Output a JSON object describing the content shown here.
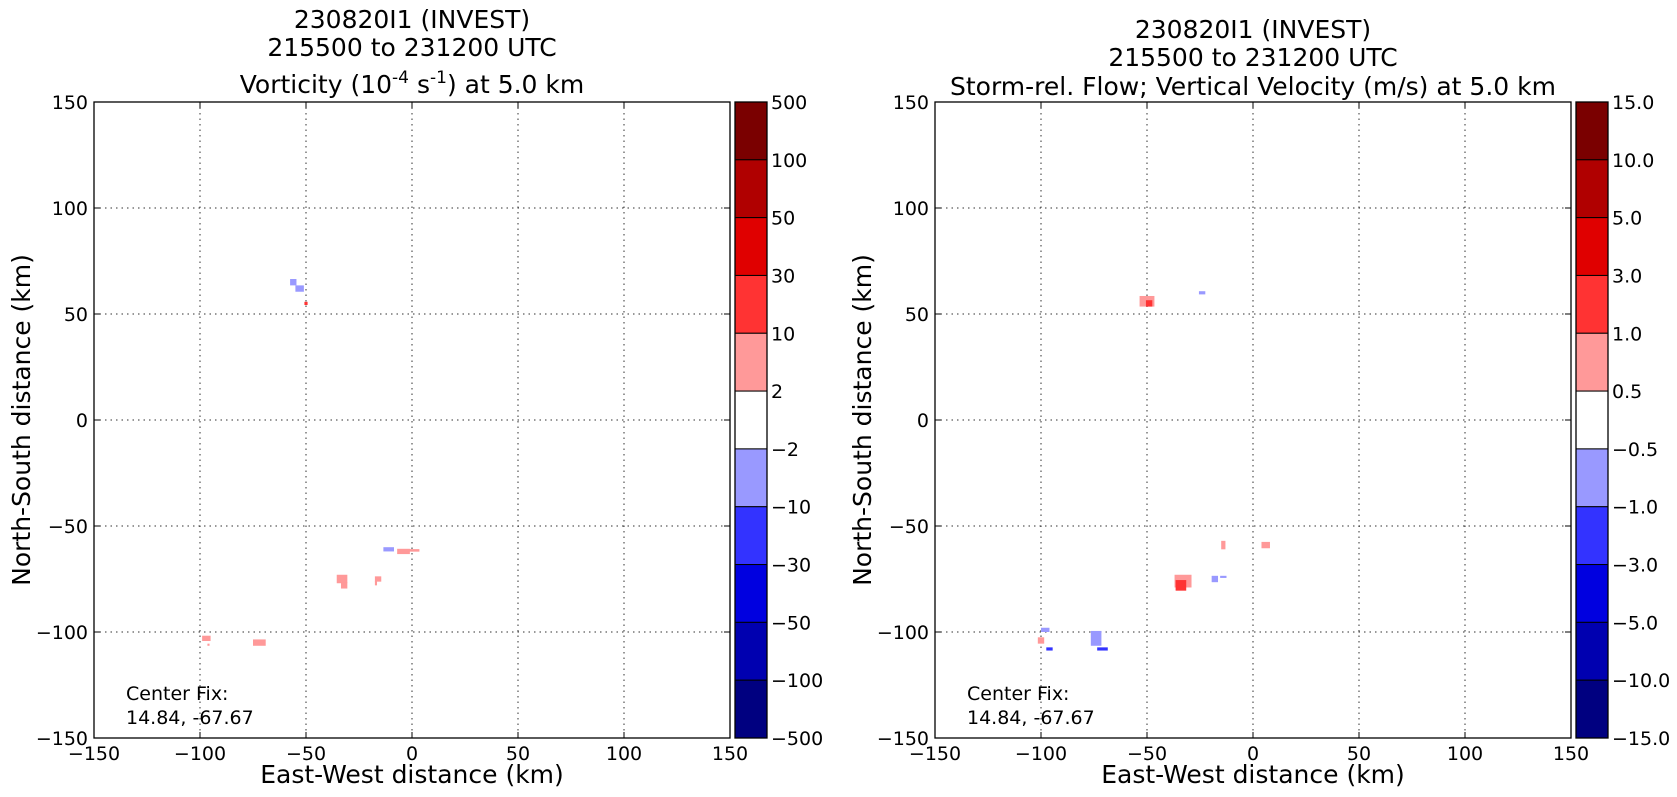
{
  "chart_data": [
    {
      "type": "heatmap",
      "title_lines": [
        "230820I1 (INVEST)",
        "215500 to 231200 UTC"
      ],
      "title_variable": {
        "pre": "Vorticity (10",
        "sup1": "-4",
        "mid": " s",
        "sup2": "-1",
        "post": ") at 5.0 km"
      },
      "xlabel": "East-West distance (km)",
      "ylabel": "North-South distance (km)",
      "xlim": [
        -150,
        150
      ],
      "ylim": [
        -150,
        150
      ],
      "xticks": [
        -150,
        -100,
        -50,
        0,
        50,
        100,
        150
      ],
      "yticks": [
        -150,
        -100,
        -50,
        0,
        50,
        100,
        150
      ],
      "xtick_labels": [
        "−150",
        "−100",
        "−50",
        "0",
        "50",
        "100",
        "150"
      ],
      "ytick_labels": [
        "−150",
        "−100",
        "−50",
        "0",
        "50",
        "100",
        "150"
      ],
      "grid": true,
      "annotation": [
        "Center Fix:",
        "14.84, -67.67"
      ],
      "colorbar": {
        "labels": [
          "500",
          "100",
          "50",
          "30",
          "10",
          "2",
          "−2",
          "−10",
          "−30",
          "−50",
          "−100",
          "−500"
        ],
        "colors": [
          "#7a0000",
          "#b00000",
          "#e00000",
          "#ff3333",
          "#ff9999",
          "#ffffff",
          "#9999ff",
          "#3333ff",
          "#0000e0",
          "#0000b0",
          "#000080"
        ]
      },
      "features": [
        {
          "x": -56,
          "y": 65,
          "w": 3,
          "h": 3,
          "color": "#9999ff"
        },
        {
          "x": -53,
          "y": 62,
          "w": 4,
          "h": 3,
          "color": "#9999ff"
        },
        {
          "x": -50,
          "y": 55,
          "w": 1.5,
          "h": 1.5,
          "color": "#ff3333"
        },
        {
          "x": -11,
          "y": -61,
          "w": 5,
          "h": 2,
          "color": "#9999ff"
        },
        {
          "x": -4,
          "y": -62,
          "w": 6,
          "h": 2.5,
          "color": "#ff9999"
        },
        {
          "x": 1,
          "y": -61.5,
          "w": 5,
          "h": 1.2,
          "color": "#ff9999"
        },
        {
          "x": -33,
          "y": -75,
          "w": 5,
          "h": 4,
          "color": "#ff9999"
        },
        {
          "x": -32,
          "y": -78,
          "w": 3,
          "h": 3,
          "color": "#ff9999"
        },
        {
          "x": -16,
          "y": -75,
          "w": 3,
          "h": 2.5,
          "color": "#ff9999"
        },
        {
          "x": -17,
          "y": -77,
          "w": 1,
          "h": 2,
          "color": "#ff9999"
        },
        {
          "x": -97,
          "y": -103,
          "w": 4,
          "h": 2.5,
          "color": "#ff9999"
        },
        {
          "x": -96,
          "y": -106,
          "w": 1,
          "h": 1,
          "color": "#ff9999"
        },
        {
          "x": -72,
          "y": -105,
          "w": 6,
          "h": 3,
          "color": "#ff9999"
        }
      ]
    },
    {
      "type": "heatmap",
      "title_lines": [
        "230820I1 (INVEST)",
        "215500 to 231200 UTC",
        "Storm-rel. Flow; Vertical Velocity (m/s) at 5.0 km"
      ],
      "xlabel": "East-West distance (km)",
      "ylabel": "North-South distance (km)",
      "xlim": [
        -150,
        150
      ],
      "ylim": [
        -150,
        150
      ],
      "xticks": [
        -150,
        -100,
        -50,
        0,
        50,
        100,
        150
      ],
      "yticks": [
        -150,
        -100,
        -50,
        0,
        50,
        100,
        150
      ],
      "xtick_labels": [
        "−150",
        "−100",
        "−50",
        "0",
        "50",
        "100",
        "150"
      ],
      "ytick_labels": [
        "−150",
        "−100",
        "−50",
        "0",
        "50",
        "100",
        "150"
      ],
      "grid": true,
      "annotation": [
        "Center Fix:",
        "14.84, -67.67"
      ],
      "colorbar": {
        "labels": [
          "15.0",
          "10.0",
          "5.0",
          "3.0",
          "1.0",
          "0.5",
          "−0.5",
          "−1.0",
          "−3.0",
          "−5.0",
          "−10.0",
          "−15.0"
        ],
        "colors": [
          "#7a0000",
          "#b00000",
          "#e00000",
          "#ff3333",
          "#ff9999",
          "#ffffff",
          "#9999ff",
          "#3333ff",
          "#0000e0",
          "#0000b0",
          "#000080"
        ]
      },
      "features": [
        {
          "x": -50,
          "y": 56,
          "w": 7,
          "h": 5,
          "color": "#ff9999"
        },
        {
          "x": -49,
          "y": 55,
          "w": 3,
          "h": 3,
          "color": "#ff3333"
        },
        {
          "x": -24,
          "y": 60,
          "w": 3,
          "h": 1.5,
          "color": "#9999ff"
        },
        {
          "x": -14,
          "y": -59,
          "w": 2,
          "h": 4,
          "color": "#ff9999"
        },
        {
          "x": 6,
          "y": -59,
          "w": 4,
          "h": 3,
          "color": "#ff9999"
        },
        {
          "x": -33,
          "y": -76,
          "w": 8,
          "h": 6,
          "color": "#ff9999"
        },
        {
          "x": -34,
          "y": -78,
          "w": 5,
          "h": 5,
          "color": "#ff3333"
        },
        {
          "x": -18,
          "y": -75,
          "w": 3,
          "h": 3,
          "color": "#9999ff"
        },
        {
          "x": -14,
          "y": -74,
          "w": 3,
          "h": 1,
          "color": "#9999ff"
        },
        {
          "x": -98,
          "y": -99,
          "w": 4,
          "h": 2,
          "color": "#9999ff"
        },
        {
          "x": -100,
          "y": -104,
          "w": 3,
          "h": 3,
          "color": "#ff9999"
        },
        {
          "x": -96,
          "y": -108,
          "w": 3,
          "h": 1.5,
          "color": "#3333ff"
        },
        {
          "x": -74,
          "y": -103,
          "w": 5,
          "h": 7,
          "color": "#9999ff"
        },
        {
          "x": -71,
          "y": -108,
          "w": 5,
          "h": 1.5,
          "color": "#3333ff"
        }
      ]
    }
  ]
}
